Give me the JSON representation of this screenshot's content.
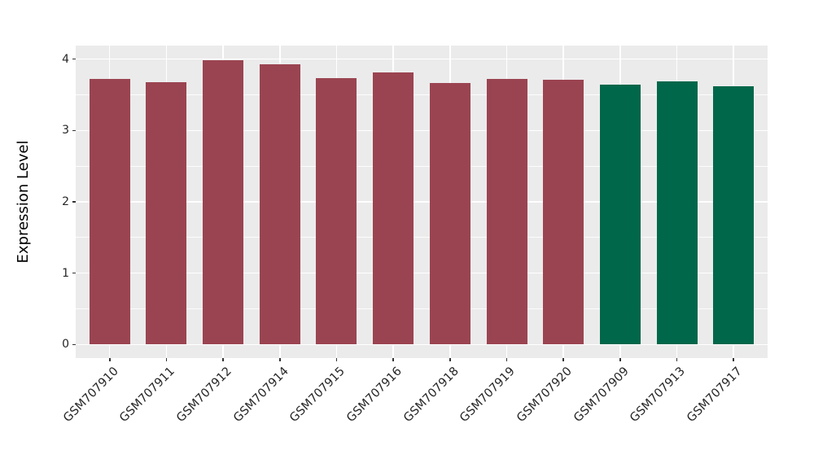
{
  "figure": {
    "background_color": "#FFFFFF",
    "panel_background_color": "#EBEBEB",
    "grid_color": "#FFFFFF",
    "axis_text_color": "#262626"
  },
  "chart_data": {
    "type": "bar",
    "title": "",
    "xlabel": "",
    "ylabel": "Expression Level",
    "categories": [
      "GSM707910",
      "GSM707911",
      "GSM707912",
      "GSM707914",
      "GSM707915",
      "GSM707916",
      "GSM707918",
      "GSM707919",
      "GSM707920",
      "GSM707909",
      "GSM707913",
      "GSM707917"
    ],
    "values": [
      3.72,
      3.68,
      3.98,
      3.93,
      3.73,
      3.81,
      3.66,
      3.72,
      3.71,
      3.64,
      3.69,
      3.62
    ],
    "bar_colors": [
      "#9B4451",
      "#9B4451",
      "#9B4451",
      "#9B4451",
      "#9B4451",
      "#9B4451",
      "#9B4451",
      "#9B4451",
      "#9B4451",
      "#00674A",
      "#00674A",
      "#00674A"
    ],
    "groups": [
      {
        "name": "maroon-group",
        "color": "#9B4451",
        "categories": [
          "GSM707910",
          "GSM707911",
          "GSM707912",
          "GSM707914",
          "GSM707915",
          "GSM707916",
          "GSM707918",
          "GSM707919",
          "GSM707920"
        ]
      },
      {
        "name": "green-group",
        "color": "#00674A",
        "categories": [
          "GSM707909",
          "GSM707913",
          "GSM707917"
        ]
      }
    ],
    "ylim": [
      0,
      4.19
    ],
    "yticks": [
      0,
      1,
      2,
      3,
      4
    ],
    "ytick_labels": [
      "0",
      "1",
      "2",
      "3",
      "4"
    ],
    "minor_yticks": [
      0.5,
      1.5,
      2.5,
      3.5
    ],
    "grid": true,
    "legend": "none",
    "bar_width_ratio": 0.72,
    "x_label_rotation_deg": 45
  }
}
